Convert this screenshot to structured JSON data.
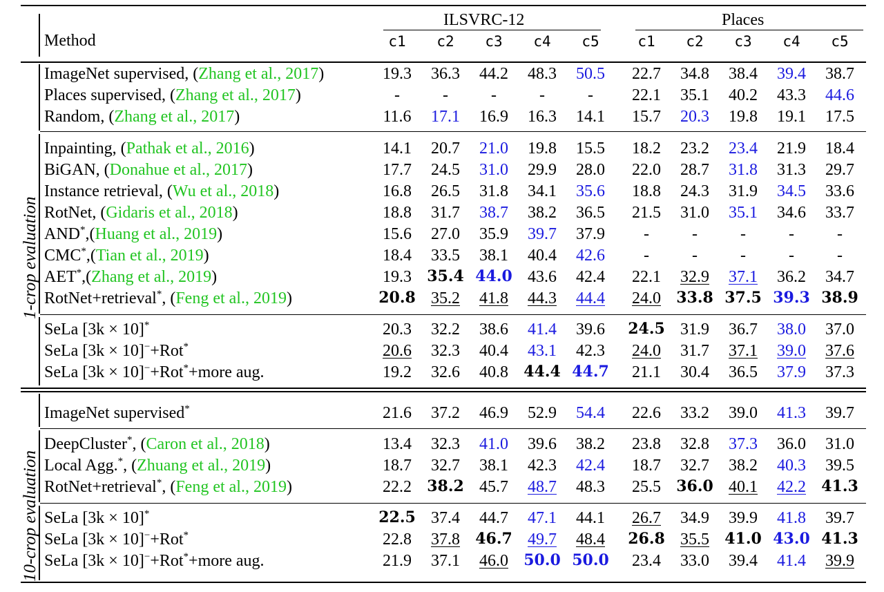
{
  "header": {
    "method": "Method",
    "group1": "ILSVRC-12",
    "group2": "Places",
    "cols": [
      "c1",
      "c2",
      "c3",
      "c4",
      "c5",
      "c1",
      "c2",
      "c3",
      "c4",
      "c5"
    ]
  },
  "side_labels": [
    "1-crop evaluation",
    "10-crop evaluation"
  ],
  "rows": [
    {
      "name": "ImageNet supervised, (",
      "cite": "Zhang et al., 2017",
      "post": ")",
      "sup": "",
      "vals": [
        "19.3",
        "36.3",
        "44.2",
        "48.3",
        "50.5",
        "22.7",
        "34.8",
        "38.4",
        "39.4",
        "38.7"
      ],
      "blue": [
        4,
        8
      ],
      "bold": [],
      "ul": []
    },
    {
      "name": "Places supervised, (",
      "cite": "Zhang et al., 2017",
      "post": ")",
      "sup": "",
      "vals": [
        "-",
        "-",
        "-",
        "-",
        "-",
        "22.1",
        "35.1",
        "40.2",
        "43.3",
        "44.6"
      ],
      "blue": [
        9
      ],
      "bold": [],
      "ul": []
    },
    {
      "name": "Random, (",
      "cite": "Zhang et al., 2017",
      "post": ")",
      "sup": "",
      "vals": [
        "11.6",
        "17.1",
        "16.9",
        "16.3",
        "14.1",
        "15.7",
        "20.3",
        "19.8",
        "19.1",
        "17.5"
      ],
      "blue": [
        1,
        6
      ],
      "bold": [],
      "ul": []
    },
    {
      "name": "Inpainting, (",
      "cite": "Pathak et al., 2016",
      "post": ")",
      "sup": "",
      "vals": [
        "14.1",
        "20.7",
        "21.0",
        "19.8",
        "15.5",
        "18.2",
        "23.2",
        "23.4",
        "21.9",
        "18.4"
      ],
      "blue": [
        2,
        7
      ],
      "bold": [],
      "ul": []
    },
    {
      "name": "BiGAN, (",
      "cite": "Donahue et al., 2017",
      "post": ")",
      "sup": "",
      "vals": [
        "17.7",
        "24.5",
        "31.0",
        "29.9",
        "28.0",
        "22.0",
        "28.7",
        "31.8",
        "31.3",
        "29.7"
      ],
      "blue": [
        2,
        7
      ],
      "bold": [],
      "ul": []
    },
    {
      "name": "Instance retrieval, (",
      "cite": "Wu et al., 2018",
      "post": ")",
      "sup": "",
      "vals": [
        "16.8",
        "26.5",
        "31.8",
        "34.1",
        "35.6",
        "18.8",
        "24.3",
        "31.9",
        "34.5",
        "33.6"
      ],
      "blue": [
        4,
        8
      ],
      "bold": [],
      "ul": []
    },
    {
      "name": "RotNet, (",
      "cite": "Gidaris et al., 2018",
      "post": ")",
      "sup": "",
      "vals": [
        "18.8",
        "31.7",
        "38.7",
        "38.2",
        "36.5",
        "21.5",
        "31.0",
        "35.1",
        "34.6",
        "33.7"
      ],
      "blue": [
        2,
        7
      ],
      "bold": [],
      "ul": []
    },
    {
      "name": "AND",
      "sup": "*",
      "name2": ",(",
      "cite": "Huang et al., 2019",
      "post": ")",
      "vals": [
        "15.6",
        "27.0",
        "35.9",
        "39.7",
        "37.9",
        "-",
        "-",
        "-",
        "-",
        "-"
      ],
      "blue": [
        3
      ],
      "bold": [],
      "ul": []
    },
    {
      "name": "CMC",
      "sup": "*",
      "name2": ",(",
      "cite": "Tian et al., 2019",
      "post": ")",
      "vals": [
        "18.4",
        "33.5",
        "38.1",
        "40.4",
        "42.6",
        "-",
        "-",
        "-",
        "-",
        "-"
      ],
      "blue": [
        4
      ],
      "bold": [],
      "ul": []
    },
    {
      "name": "AET",
      "sup": "*",
      "name2": ",(",
      "cite": "Zhang et al., 2019",
      "post": ")",
      "vals": [
        "19.3",
        "35.4",
        "44.0",
        "43.6",
        "42.4",
        "22.1",
        "32.9",
        "37.1",
        "36.2",
        "34.7"
      ],
      "blue": [
        2,
        7
      ],
      "bold": [
        1,
        2
      ],
      "ul": [
        6,
        7
      ]
    },
    {
      "name": "RotNet+retrieval",
      "sup": "*",
      "name2": ", (",
      "cite": "Feng et al., 2019",
      "post": ")",
      "vals": [
        "20.8",
        "35.2",
        "41.8",
        "44.3",
        "44.4",
        "24.0",
        "33.8",
        "37.5",
        "39.3",
        "38.9"
      ],
      "blue": [
        4,
        8
      ],
      "bold": [
        0,
        6,
        7,
        8,
        9
      ],
      "ul": [
        1,
        2,
        3,
        4,
        5
      ]
    },
    {
      "name": "SeLa [3k × 10]",
      "sup": "*",
      "name2": "",
      "cite": "",
      "post": "",
      "vals": [
        "20.3",
        "32.2",
        "38.6",
        "41.4",
        "39.6",
        "24.5",
        "31.9",
        "36.7",
        "38.0",
        "37.0"
      ],
      "blue": [
        3,
        8
      ],
      "bold": [
        5
      ],
      "ul": []
    },
    {
      "name": "SeLa [3k × 10]",
      "sup": "−",
      "name2": "+Rot",
      "sup2": "*",
      "cite": "",
      "post": "",
      "vals": [
        "20.6",
        "32.3",
        "40.4",
        "43.1",
        "42.3",
        "24.0",
        "31.7",
        "37.1",
        "39.0",
        "37.6"
      ],
      "blue": [
        3,
        8
      ],
      "bold": [],
      "ul": [
        0,
        5,
        7,
        8,
        9
      ]
    },
    {
      "name": "SeLa [3k × 10]",
      "sup": "−",
      "name2": "+Rot",
      "sup2": "*",
      "name3": "+more aug.",
      "cite": "",
      "post": "",
      "vals": [
        "19.2",
        "32.6",
        "40.8",
        "44.4",
        "44.7",
        "21.1",
        "30.4",
        "36.5",
        "37.9",
        "37.3"
      ],
      "blue": [
        4,
        8
      ],
      "bold": [
        3,
        4
      ],
      "ul": []
    },
    {
      "name": "ImageNet supervised",
      "sup": "*",
      "name2": "",
      "cite": "",
      "post": "",
      "vals": [
        "21.6",
        "37.2",
        "46.9",
        "52.9",
        "54.4",
        "22.6",
        "33.2",
        "39.0",
        "41.3",
        "39.7"
      ],
      "blue": [
        4,
        8
      ],
      "bold": [],
      "ul": []
    },
    {
      "name": "DeepCluster",
      "sup": "*",
      "name2": ", (",
      "cite": "Caron et al., 2018",
      "post": ")",
      "vals": [
        "13.4",
        "32.3",
        "41.0",
        "39.6",
        "38.2",
        "23.8",
        "32.8",
        "37.3",
        "36.0",
        "31.0"
      ],
      "blue": [
        2,
        7
      ],
      "bold": [],
      "ul": []
    },
    {
      "name": "Local Agg.",
      "sup": "*",
      "name2": ", (",
      "cite": "Zhuang et al., 2019",
      "post": ")",
      "vals": [
        "18.7",
        "32.7",
        "38.1",
        "42.3",
        "42.4",
        "18.7",
        "32.7",
        "38.2",
        "40.3",
        "39.5"
      ],
      "blue": [
        4,
        8
      ],
      "bold": [],
      "ul": []
    },
    {
      "name": "RotNet+retrieval",
      "sup": "*",
      "name2": ", (",
      "cite": "Feng et al., 2019",
      "post": ")",
      "vals": [
        "22.2",
        "38.2",
        "45.7",
        "48.7",
        "48.3",
        "25.5",
        "36.0",
        "40.1",
        "42.2",
        "41.3"
      ],
      "blue": [
        3,
        8
      ],
      "bold": [
        1,
        6,
        9
      ],
      "ul": [
        3,
        7,
        8
      ]
    },
    {
      "name": "SeLa [3k × 10]",
      "sup": "*",
      "name2": "",
      "cite": "",
      "post": "",
      "vals": [
        "22.5",
        "37.4",
        "44.7",
        "47.1",
        "44.1",
        "26.7",
        "34.9",
        "39.9",
        "41.8",
        "39.7"
      ],
      "blue": [
        3,
        8
      ],
      "bold": [
        0
      ],
      "ul": [
        5
      ]
    },
    {
      "name": "SeLa [3k × 10]",
      "sup": "−",
      "name2": "+Rot",
      "sup2": "*",
      "cite": "",
      "post": "",
      "vals": [
        "22.8",
        "37.8",
        "46.7",
        "49.7",
        "48.4",
        "26.8",
        "35.5",
        "41.0",
        "43.0",
        "41.3"
      ],
      "blue": [
        3,
        8
      ],
      "bold": [
        2,
        5,
        7,
        8,
        9
      ],
      "ul": [
        1,
        3,
        4,
        6
      ]
    },
    {
      "name": "SeLa [3k × 10]",
      "sup": "−",
      "name2": "+Rot",
      "sup2": "*",
      "name3": "+more aug.",
      "cite": "",
      "post": "",
      "vals": [
        "21.9",
        "37.1",
        "46.0",
        "50.0",
        "50.0",
        "23.4",
        "33.0",
        "39.4",
        "41.4",
        "39.9"
      ],
      "blue": [
        3,
        4,
        8
      ],
      "bold": [
        3,
        4
      ],
      "ul": [
        2,
        9
      ]
    }
  ]
}
